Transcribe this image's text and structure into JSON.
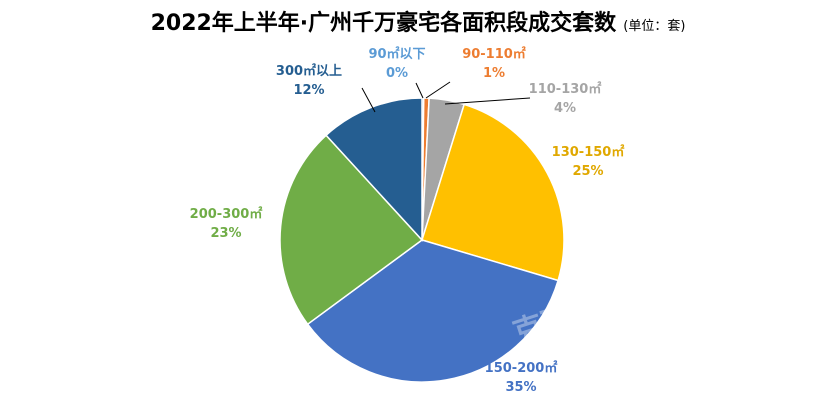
{
  "chart_data": {
    "type": "pie",
    "title": "2022年上半年·广州千万豪宅各面积段成交套数",
    "unit_label": "(单位：套)",
    "colors": {
      "90m2_below": "#5b9bd5",
      "90_110": "#ed7d31",
      "110_130": "#a5a5a5",
      "130_150": "#ffc000",
      "150_200": "#4472c4",
      "200_300": "#70ad47",
      "300_above": "#255e91"
    },
    "slices": [
      {
        "name": "90㎡以下",
        "percent_label": "0%",
        "value": 0.2,
        "color": "#5b9bd5"
      },
      {
        "name": "90-110㎡",
        "percent_label": "1%",
        "value": 0.6,
        "color": "#ed7d31"
      },
      {
        "name": "110-130㎡",
        "percent_label": "4%",
        "value": 4,
        "color": "#a5a5a5"
      },
      {
        "name": "130-150㎡",
        "percent_label": "25%",
        "value": 24.8,
        "color": "#ffc000"
      },
      {
        "name": "150-200㎡",
        "percent_label": "35%",
        "value": 35.3,
        "color": "#4472c4"
      },
      {
        "name": "200-300㎡",
        "percent_label": "23%",
        "value": 23.3,
        "color": "#70ad47"
      },
      {
        "name": "300㎡以上",
        "percent_label": "12%",
        "value": 11.8,
        "color": "#255e91"
      }
    ],
    "watermark": "克而瑞"
  }
}
